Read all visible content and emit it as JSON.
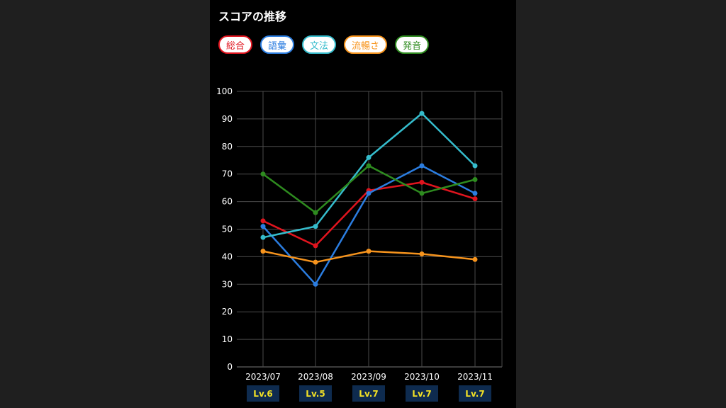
{
  "title": "スコアの推移",
  "legend": [
    {
      "label": "総合",
      "color": "#e0141e"
    },
    {
      "label": "語彙",
      "color": "#2b7de0"
    },
    {
      "label": "文法",
      "color": "#35bccc"
    },
    {
      "label": "流暢さ",
      "color": "#f7941d"
    },
    {
      "label": "発音",
      "color": "#2e8b1f"
    }
  ],
  "chart_data": {
    "type": "line",
    "title": "スコアの推移",
    "categories": [
      "2023/07",
      "2023/08",
      "2023/09",
      "2023/10",
      "2023/11"
    ],
    "ylim": [
      0,
      100
    ],
    "yticks": [
      0,
      10,
      20,
      30,
      40,
      50,
      60,
      70,
      80,
      90,
      100
    ],
    "grid": true,
    "legend_position": "top",
    "series": [
      {
        "name": "総合",
        "color": "#e0141e",
        "values": [
          53,
          44,
          64,
          67,
          61
        ]
      },
      {
        "name": "語彙",
        "color": "#2b7de0",
        "values": [
          51,
          30,
          63,
          73,
          63
        ]
      },
      {
        "name": "文法",
        "color": "#35bccc",
        "values": [
          47,
          51,
          76,
          92,
          73
        ]
      },
      {
        "name": "流暢さ",
        "color": "#f7941d",
        "values": [
          42,
          38,
          42,
          41,
          39
        ]
      },
      {
        "name": "発音",
        "color": "#2e8b1f",
        "values": [
          70,
          56,
          73,
          63,
          68
        ]
      }
    ],
    "levels": [
      "Lv.6",
      "Lv.5",
      "Lv.7",
      "Lv.7",
      "Lv.7"
    ]
  }
}
